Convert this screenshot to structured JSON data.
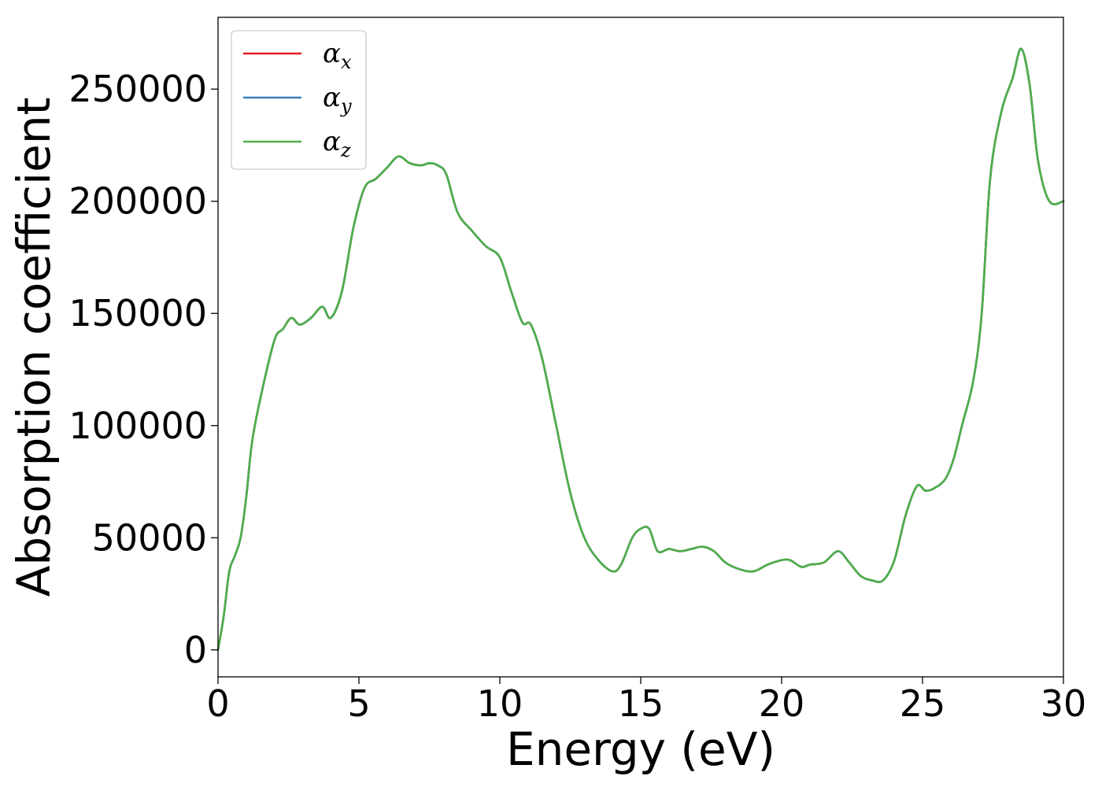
{
  "chart_data": {
    "type": "line",
    "title": "",
    "xlabel": "Energy (eV)",
    "ylabel": "Absorption coefficient",
    "xlim": [
      0,
      30
    ],
    "ylim": [
      -12000,
      282000
    ],
    "xticks": [
      0,
      5,
      10,
      15,
      20,
      25,
      30
    ],
    "xtick_labels": [
      "0",
      "5",
      "10",
      "15",
      "20",
      "25",
      "30"
    ],
    "yticks": [
      0,
      50000,
      100000,
      150000,
      200000,
      250000
    ],
    "ytick_labels": [
      "0",
      "50000",
      "100000",
      "150000",
      "200000",
      "250000"
    ],
    "grid": false,
    "legend_position": "top-left",
    "x": [
      0,
      0.2,
      0.4,
      0.6,
      0.8,
      1.0,
      1.2,
      1.5,
      2.0,
      2.3,
      2.6,
      2.9,
      3.3,
      3.7,
      4.0,
      4.4,
      4.8,
      5.2,
      5.6,
      6.0,
      6.4,
      6.8,
      7.2,
      7.5,
      7.8,
      8.1,
      8.5,
      9.0,
      9.5,
      10.0,
      10.4,
      10.8,
      11.1,
      11.5,
      12.0,
      12.5,
      13.0,
      13.5,
      14.0,
      14.3,
      14.7,
      15.0,
      15.3,
      15.6,
      16.0,
      16.4,
      16.8,
      17.2,
      17.6,
      18.0,
      18.5,
      19.0,
      19.5,
      20.0,
      20.3,
      20.7,
      21.0,
      21.5,
      22.0,
      22.4,
      22.8,
      23.2,
      23.6,
      24.0,
      24.4,
      24.8,
      25.1,
      25.4,
      25.8,
      26.1,
      26.4,
      26.8,
      27.1,
      27.4,
      27.8,
      28.2,
      28.5,
      28.8,
      29.1,
      29.5,
      30.0
    ],
    "series": [
      {
        "name": "αx",
        "label_main": "α",
        "label_sub": "x",
        "color": "#e41a1c",
        "values": [
          0,
          15000,
          35000,
          42000,
          50000,
          68000,
          92000,
          112000,
          138000,
          143000,
          148000,
          145000,
          148000,
          153000,
          148000,
          160000,
          188000,
          206000,
          210000,
          215000,
          220000,
          217000,
          216000,
          217000,
          216000,
          212000,
          195000,
          187000,
          180000,
          175000,
          160000,
          146000,
          145000,
          130000,
          100000,
          70000,
          50000,
          40000,
          35000,
          38000,
          50000,
          54000,
          54000,
          44000,
          45000,
          44000,
          45000,
          46000,
          44000,
          39000,
          36000,
          35000,
          38000,
          40000,
          40000,
          37000,
          38000,
          39000,
          44000,
          39000,
          33000,
          31000,
          31000,
          40000,
          60000,
          73000,
          71000,
          72000,
          76000,
          85000,
          100000,
          120000,
          150000,
          210000,
          240000,
          255000,
          268000,
          252000,
          218000,
          200000,
          200000
        ]
      },
      {
        "name": "αy",
        "label_main": "α",
        "label_sub": "y",
        "color": "#377eb8",
        "values": [
          0,
          15000,
          35000,
          42000,
          50000,
          68000,
          92000,
          112000,
          138000,
          143000,
          148000,
          145000,
          148000,
          153000,
          148000,
          160000,
          188000,
          206000,
          210000,
          215000,
          220000,
          217000,
          216000,
          217000,
          216000,
          212000,
          195000,
          187000,
          180000,
          175000,
          160000,
          146000,
          145000,
          130000,
          100000,
          70000,
          50000,
          40000,
          35000,
          38000,
          50000,
          54000,
          54000,
          44000,
          45000,
          44000,
          45000,
          46000,
          44000,
          39000,
          36000,
          35000,
          38000,
          40000,
          40000,
          37000,
          38000,
          39000,
          44000,
          39000,
          33000,
          31000,
          31000,
          40000,
          60000,
          73000,
          71000,
          72000,
          76000,
          85000,
          100000,
          120000,
          150000,
          210000,
          240000,
          255000,
          268000,
          252000,
          218000,
          200000,
          200000
        ]
      },
      {
        "name": "αz",
        "label_main": "α",
        "label_sub": "z",
        "color": "#4daf4a",
        "values": [
          0,
          15000,
          35000,
          42000,
          50000,
          68000,
          92000,
          112000,
          138000,
          143000,
          148000,
          145000,
          148000,
          153000,
          148000,
          160000,
          188000,
          206000,
          210000,
          215000,
          220000,
          217000,
          216000,
          217000,
          216000,
          212000,
          195000,
          187000,
          180000,
          175000,
          160000,
          146000,
          145000,
          130000,
          100000,
          70000,
          50000,
          40000,
          35000,
          38000,
          50000,
          54000,
          54000,
          44000,
          45000,
          44000,
          45000,
          46000,
          44000,
          39000,
          36000,
          35000,
          38000,
          40000,
          40000,
          37000,
          38000,
          39000,
          44000,
          39000,
          33000,
          31000,
          31000,
          40000,
          60000,
          73000,
          71000,
          72000,
          76000,
          85000,
          100000,
          120000,
          150000,
          210000,
          240000,
          255000,
          268000,
          252000,
          218000,
          200000,
          200000
        ]
      }
    ]
  }
}
